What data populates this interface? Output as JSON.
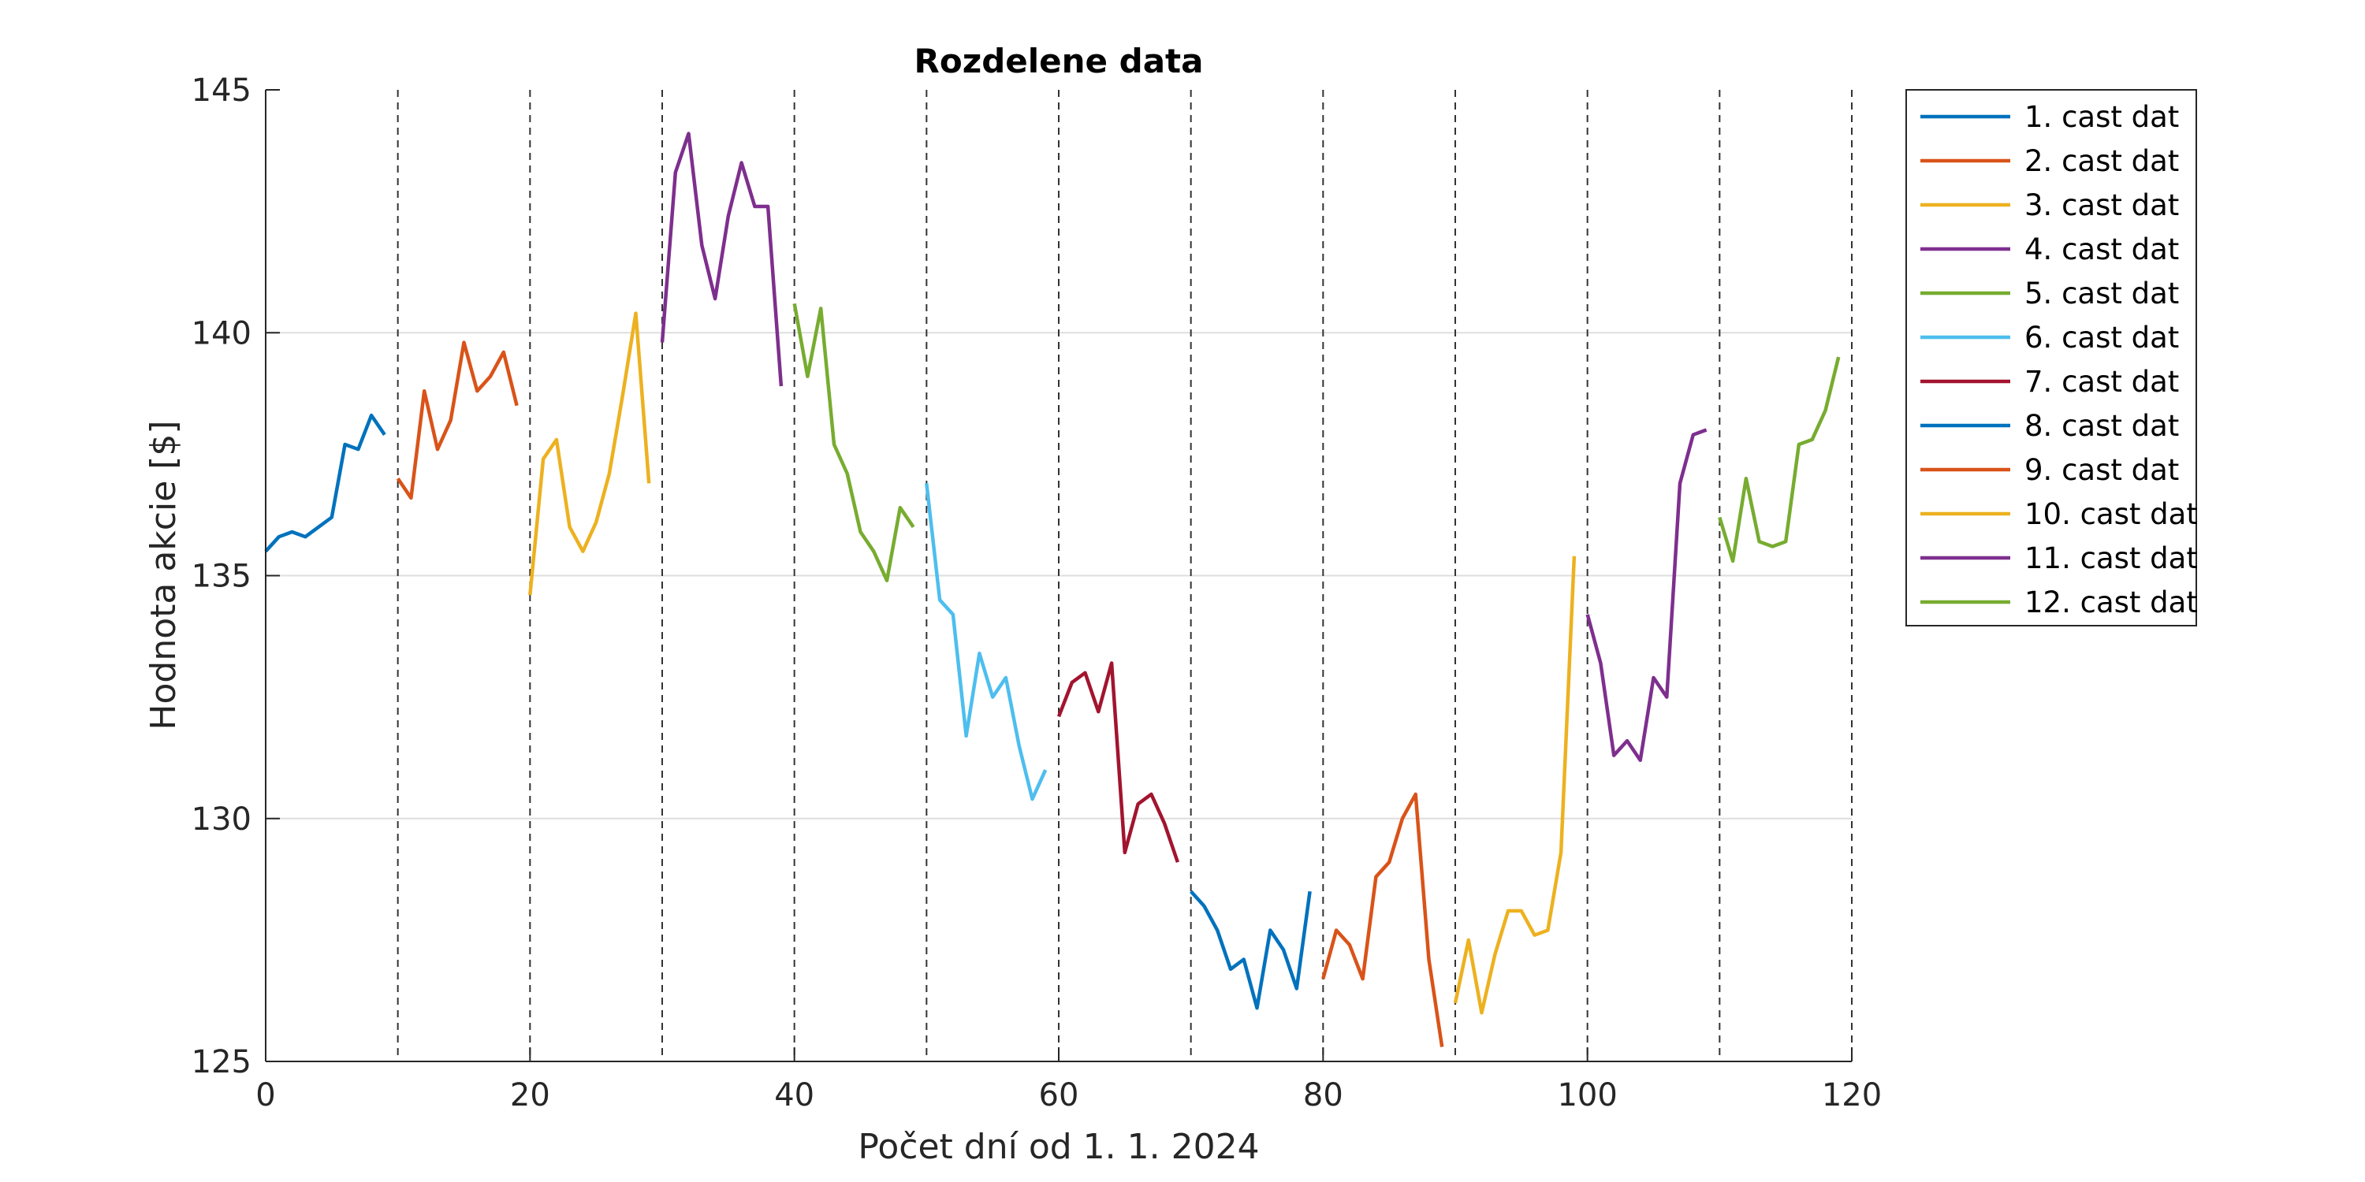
{
  "chart_data": {
    "type": "line",
    "title": "Rozdelene data",
    "xlabel": "Počet dní od 1. 1. 2024",
    "ylabel": "Hodnota akcie [$]",
    "xlim": [
      0,
      120
    ],
    "ylim": [
      125,
      145
    ],
    "xticks": [
      0,
      20,
      40,
      60,
      80,
      100,
      120
    ],
    "yticks": [
      125,
      130,
      135,
      140,
      145
    ],
    "grid": true,
    "legend_position": "outside-top-right",
    "boundaries": [
      10,
      20,
      30,
      40,
      50,
      60,
      70,
      80,
      90,
      100,
      110,
      120
    ],
    "series": [
      {
        "name": "1. cast dat",
        "color": "#0072BD",
        "x": [
          0,
          1,
          2,
          3,
          4,
          5,
          6,
          7,
          8,
          9
        ],
        "y": [
          135.5,
          135.8,
          135.9,
          135.8,
          136.0,
          136.2,
          137.7,
          137.6,
          138.3,
          137.9
        ]
      },
      {
        "name": "2. cast dat",
        "color": "#D95319",
        "x": [
          10,
          11,
          12,
          13,
          14,
          15,
          16,
          17,
          18,
          19
        ],
        "y": [
          137.0,
          136.6,
          138.8,
          137.6,
          138.2,
          139.8,
          138.8,
          139.1,
          139.6,
          138.5
        ]
      },
      {
        "name": "3. cast dat",
        "color": "#EDB120",
        "x": [
          20,
          21,
          22,
          23,
          24,
          25,
          26,
          27,
          28,
          29
        ],
        "y": [
          134.6,
          137.4,
          137.8,
          136.0,
          135.5,
          136.1,
          137.1,
          138.7,
          140.4,
          136.9
        ]
      },
      {
        "name": "4. cast dat",
        "color": "#7E2F8E",
        "x": [
          30,
          31,
          32,
          33,
          34,
          35,
          36,
          37,
          38,
          39
        ],
        "y": [
          139.8,
          143.3,
          144.1,
          141.8,
          140.7,
          142.4,
          143.5,
          142.6,
          142.6,
          138.9
        ]
      },
      {
        "name": "5. cast dat",
        "color": "#77AC30",
        "x": [
          40,
          41,
          42,
          43,
          44,
          45,
          46,
          47,
          48,
          49
        ],
        "y": [
          140.6,
          139.1,
          140.5,
          137.7,
          137.1,
          135.9,
          135.5,
          134.9,
          136.4,
          136.0
        ]
      },
      {
        "name": "6. cast dat",
        "color": "#4DBEEE",
        "x": [
          50,
          51,
          52,
          53,
          54,
          55,
          56,
          57,
          58,
          59
        ],
        "y": [
          136.9,
          134.5,
          134.2,
          131.7,
          133.4,
          132.5,
          132.9,
          131.5,
          130.4,
          131.0
        ]
      },
      {
        "name": "7. cast dat",
        "color": "#A2142F",
        "x": [
          60,
          61,
          62,
          63,
          64,
          65,
          66,
          67,
          68,
          69
        ],
        "y": [
          132.1,
          132.8,
          133.0,
          132.2,
          133.2,
          129.3,
          130.3,
          130.5,
          129.9,
          129.1
        ]
      },
      {
        "name": "8. cast dat",
        "color": "#0072BD",
        "x": [
          70,
          71,
          72,
          73,
          74,
          75,
          76,
          77,
          78,
          79
        ],
        "y": [
          128.5,
          128.2,
          127.7,
          126.9,
          127.1,
          126.1,
          127.7,
          127.3,
          126.5,
          128.5
        ]
      },
      {
        "name": "9. cast dat",
        "color": "#D95319",
        "x": [
          80,
          81,
          82,
          83,
          84,
          85,
          86,
          87,
          88,
          89
        ],
        "y": [
          126.7,
          127.7,
          127.4,
          126.7,
          128.8,
          129.1,
          130.0,
          130.5,
          127.1,
          125.3
        ]
      },
      {
        "name": "10. cast dat",
        "color": "#EDB120",
        "x": [
          90,
          91,
          92,
          93,
          94,
          95,
          96,
          97,
          98,
          99
        ],
        "y": [
          126.2,
          127.5,
          126.0,
          127.2,
          128.1,
          128.1,
          127.6,
          127.7,
          129.3,
          135.4
        ]
      },
      {
        "name": "11. cast dat",
        "color": "#7E2F8E",
        "x": [
          100,
          101,
          102,
          103,
          104,
          105,
          106,
          107,
          108,
          109
        ],
        "y": [
          134.2,
          133.2,
          131.3,
          131.6,
          131.2,
          132.9,
          132.5,
          136.9,
          137.9,
          138.0
        ]
      },
      {
        "name": "12. cast dat",
        "color": "#77AC30",
        "x": [
          110,
          111,
          112,
          113,
          114,
          115,
          116,
          117,
          118,
          119
        ],
        "y": [
          136.2,
          135.3,
          137.0,
          135.7,
          135.6,
          135.7,
          137.7,
          137.8,
          138.4,
          139.5
        ]
      }
    ]
  }
}
